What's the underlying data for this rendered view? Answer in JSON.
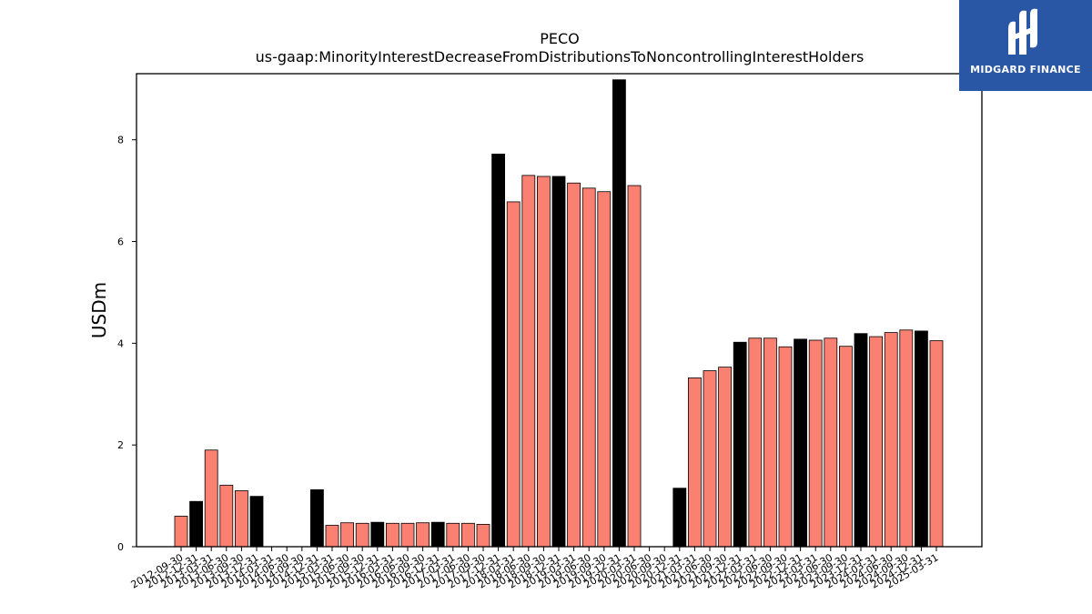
{
  "chart_data": {
    "type": "bar",
    "title": "PECO",
    "subtitle": "us-gaap:MinorityInterestDecreaseFromDistributionsToNoncontrollingInterestHolders",
    "ylabel": "USDm",
    "xlabel": "",
    "ylim": [
      0,
      9.3
    ],
    "yticks": [
      0,
      2,
      4,
      6,
      8
    ],
    "grid": false,
    "colors": {
      "quarter": "#fa8072",
      "year_end": "#000000"
    },
    "categories": [
      "2012-09-30",
      "2012-12-31",
      "2013-03-31",
      "2013-06-30",
      "2013-09-30",
      "2013-12-31",
      "2014-03-31",
      "2014-06-30",
      "2014-09-30",
      "2014-12-31",
      "2015-03-31",
      "2015-06-30",
      "2015-09-30",
      "2015-12-31",
      "2016-03-31",
      "2016-06-30",
      "2016-09-30",
      "2016-12-31",
      "2017-03-31",
      "2017-06-30",
      "2017-09-30",
      "2017-12-31",
      "2018-03-31",
      "2018-06-30",
      "2018-09-30",
      "2018-12-31",
      "2019-03-31",
      "2019-06-30",
      "2019-09-30",
      "2019-12-31",
      "2020-03-31",
      "2020-06-30",
      "2020-09-30",
      "2020-12-31",
      "2021-03-31",
      "2021-06-30",
      "2021-09-30",
      "2021-12-31",
      "2022-03-31",
      "2022-06-30",
      "2022-09-30",
      "2022-12-31",
      "2023-03-31",
      "2023-06-30",
      "2023-09-30",
      "2023-12-31",
      "2024-03-31",
      "2024-06-30",
      "2024-09-30",
      "2024-12-31",
      "2025-03-31"
    ],
    "values": [
      0.6,
      0.89,
      1.9,
      1.21,
      1.1,
      0.99,
      0,
      0,
      0,
      1.12,
      0.42,
      0.47,
      0.46,
      0.48,
      0.46,
      0.46,
      0.47,
      0.48,
      0.46,
      0.46,
      0.44,
      7.72,
      6.78,
      7.3,
      7.28,
      7.28,
      7.15,
      7.05,
      6.98,
      9.18,
      7.1,
      0,
      0,
      1.15,
      3.32,
      3.46,
      3.53,
      4.02,
      4.1,
      4.1,
      3.93,
      4.08,
      4.06,
      4.1,
      3.94,
      4.19,
      4.13,
      4.21,
      4.26,
      4.24,
      4.05
    ]
  },
  "logo": {
    "text": "MIDGARD FINANCE",
    "icon": "midgard-finance-logo-icon"
  }
}
